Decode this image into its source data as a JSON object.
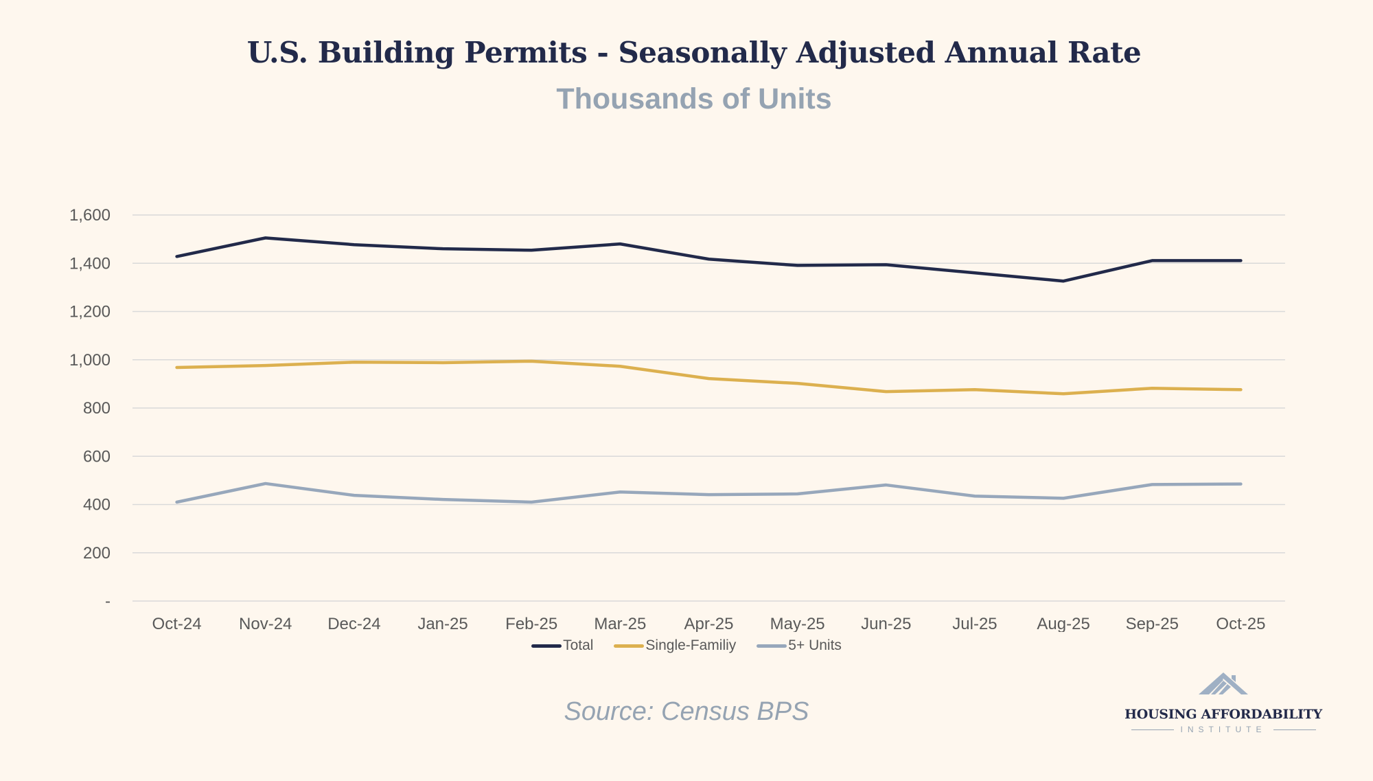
{
  "chart_data": {
    "type": "line",
    "title": "U.S. Building Permits - Seasonally Adjusted Annual Rate",
    "subtitle": "Thousands of Units",
    "xlabel": "",
    "ylabel": "",
    "ylim": [
      0,
      1600
    ],
    "y_ticks": [
      0,
      200,
      400,
      600,
      800,
      1000,
      1200,
      1400,
      1600
    ],
    "y_tick_labels": [
      "-",
      "200",
      "400",
      "600",
      "800",
      "1,000",
      "1,200",
      "1,400",
      "1,600"
    ],
    "grid": true,
    "legend_position": "bottom",
    "categories": [
      "Oct-24",
      "Nov-24",
      "Dec-24",
      "Jan-25",
      "Feb-25",
      "Mar-25",
      "Apr-25",
      "May-25",
      "Jun-25",
      "Jul-25",
      "Aug-25",
      "Sep-25",
      "Oct-25"
    ],
    "series": [
      {
        "name": "Total",
        "color": "#222a4a",
        "values": [
          1428,
          1505,
          1477,
          1460,
          1454,
          1480,
          1417,
          1391,
          1394,
          1360,
          1326,
          1411,
          1411
        ]
      },
      {
        "name": "Single-Familiy",
        "color": "#dcb04f",
        "values": [
          968,
          976,
          990,
          988,
          994,
          973,
          922,
          902,
          868,
          876,
          859,
          882,
          876
        ]
      },
      {
        "name": "5+ Units",
        "color": "#97a7bb",
        "values": [
          410,
          487,
          438,
          421,
          410,
          452,
          441,
          444,
          481,
          435,
          426,
          483,
          485
        ]
      }
    ],
    "source": "Source: Census BPS"
  },
  "logo": {
    "name": "HOUSING AFFORDABILITY",
    "subname": "INSTITUTE"
  }
}
